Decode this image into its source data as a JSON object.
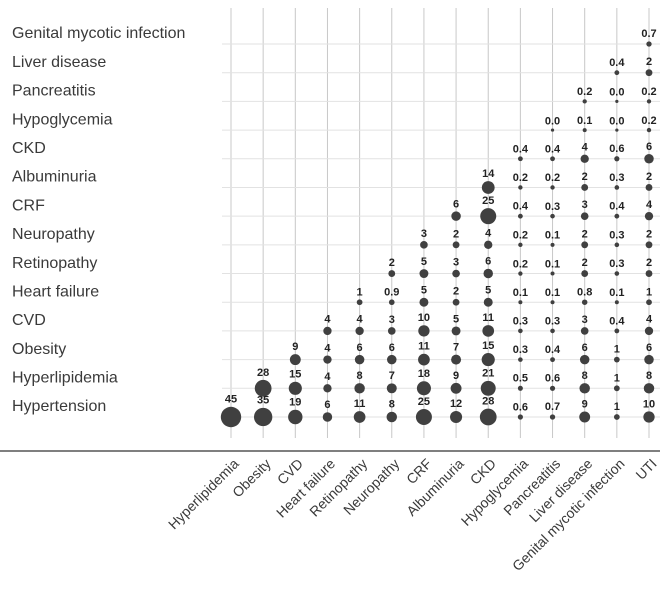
{
  "chart_data": {
    "type": "bubble-matrix",
    "categories": [
      "Hyperlipidemia",
      "Obesity",
      "CVD",
      "Heart failure",
      "Retinopathy",
      "Neuropathy",
      "CRF",
      "Albuminuria",
      "CKD",
      "Hypoglycemia",
      "Pancreatitis",
      "Liver disease",
      "Genital mycotic infection",
      "UTI"
    ],
    "color": "#404040",
    "series": [
      {
        "name": "Genital mycotic infection",
        "values": [
          null,
          null,
          null,
          null,
          null,
          null,
          null,
          null,
          null,
          null,
          null,
          null,
          null,
          0.7
        ]
      },
      {
        "name": "Liver disease",
        "values": [
          null,
          null,
          null,
          null,
          null,
          null,
          null,
          null,
          null,
          null,
          null,
          null,
          0.4,
          2
        ]
      },
      {
        "name": "Pancreatitis",
        "values": [
          null,
          null,
          null,
          null,
          null,
          null,
          null,
          null,
          null,
          null,
          null,
          0.2,
          0,
          0.2
        ],
        "value_labels": [
          null,
          null,
          null,
          null,
          null,
          null,
          null,
          null,
          null,
          null,
          null,
          "0.2",
          "0.0",
          "0.2"
        ]
      },
      {
        "name": "Hypoglycemia",
        "values": [
          null,
          null,
          null,
          null,
          null,
          null,
          null,
          null,
          null,
          null,
          0,
          0.1,
          0,
          0.2
        ],
        "value_labels": [
          null,
          null,
          null,
          null,
          null,
          null,
          null,
          null,
          null,
          null,
          "0.0",
          "0.1",
          "0.0",
          "0.2"
        ]
      },
      {
        "name": "CKD",
        "values": [
          null,
          null,
          null,
          null,
          null,
          null,
          null,
          null,
          null,
          0.4,
          0.4,
          4,
          0.6,
          6
        ]
      },
      {
        "name": "Albuminuria",
        "values": [
          null,
          null,
          null,
          null,
          null,
          null,
          null,
          null,
          14,
          0.2,
          0.2,
          2,
          0.3,
          2
        ]
      },
      {
        "name": "CRF",
        "values": [
          null,
          null,
          null,
          null,
          null,
          null,
          null,
          6,
          25,
          0.4,
          0.3,
          3,
          0.4,
          4
        ]
      },
      {
        "name": "Neuropathy",
        "values": [
          null,
          null,
          null,
          null,
          null,
          null,
          3,
          2,
          4,
          0.2,
          0.1,
          2,
          0.3,
          2
        ]
      },
      {
        "name": "Retinopathy",
        "values": [
          null,
          null,
          null,
          null,
          null,
          2,
          5,
          3,
          6,
          0.2,
          0.1,
          2,
          0.3,
          2
        ]
      },
      {
        "name": "Heart failure",
        "values": [
          null,
          null,
          null,
          null,
          1,
          0.9,
          5,
          2,
          5,
          0.1,
          0.1,
          0.8,
          0.1,
          1
        ]
      },
      {
        "name": "CVD",
        "values": [
          null,
          null,
          null,
          4,
          4,
          3,
          10,
          5,
          11,
          0.3,
          0.3,
          3,
          0.4,
          4
        ]
      },
      {
        "name": "Obesity",
        "values": [
          null,
          null,
          9,
          4,
          6,
          6,
          11,
          7,
          15,
          0.3,
          0.4,
          6,
          1,
          6
        ]
      },
      {
        "name": "Hyperlipidemia",
        "values": [
          null,
          28,
          15,
          4,
          8,
          7,
          18,
          9,
          21,
          0.5,
          0.6,
          8,
          1,
          8
        ]
      },
      {
        "name": "Hypertension",
        "values": [
          45,
          35,
          19,
          6,
          11,
          8,
          25,
          12,
          28,
          0.6,
          0.7,
          9,
          1,
          10
        ]
      }
    ]
  }
}
